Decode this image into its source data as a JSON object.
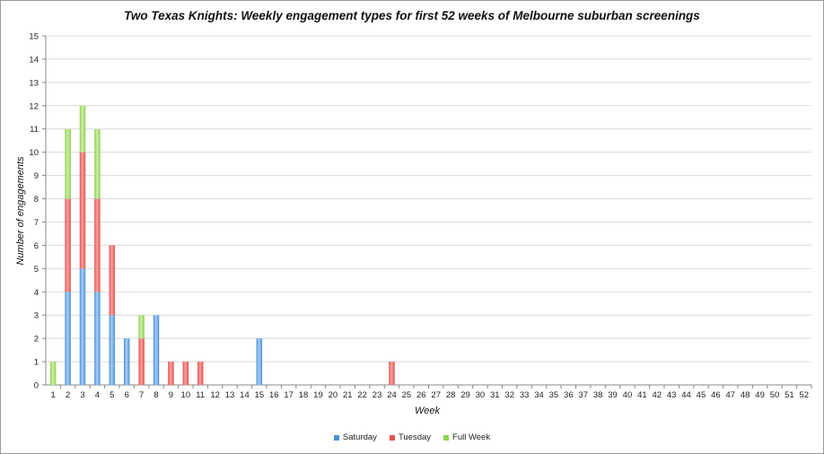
{
  "chart_data": {
    "type": "bar",
    "stacked": true,
    "title": "Two Texas Knights: Weekly engagement types for first 52 weeks of Melbourne suburban screenings",
    "xlabel": "Week",
    "ylabel": "Number of engagements",
    "ylim": [
      0,
      15
    ],
    "yticks": [
      "0",
      "1",
      "2",
      "3",
      "4",
      "5",
      "6",
      "7",
      "8",
      "9",
      "10",
      "11",
      "12",
      "13",
      "14",
      "15"
    ],
    "grid": true,
    "legend_position": "bottom",
    "categories": [
      "1",
      "2",
      "3",
      "4",
      "5",
      "6",
      "7",
      "8",
      "9",
      "10",
      "11",
      "12",
      "13",
      "14",
      "15",
      "16",
      "17",
      "18",
      "19",
      "20",
      "21",
      "22",
      "23",
      "24",
      "25",
      "26",
      "27",
      "28",
      "29",
      "30",
      "31",
      "32",
      "33",
      "34",
      "35",
      "36",
      "37",
      "38",
      "39",
      "40",
      "41",
      "42",
      "43",
      "44",
      "45",
      "46",
      "47",
      "48",
      "49",
      "50",
      "51",
      "52"
    ],
    "series": [
      {
        "name": "Saturday",
        "color": "#4a90d9",
        "values": [
          0,
          4,
          5,
          4,
          3,
          2,
          0,
          3,
          0,
          0,
          0,
          0,
          0,
          0,
          2,
          0,
          0,
          0,
          0,
          0,
          0,
          0,
          0,
          0,
          0,
          0,
          0,
          0,
          0,
          0,
          0,
          0,
          0,
          0,
          0,
          0,
          0,
          0,
          0,
          0,
          0,
          0,
          0,
          0,
          0,
          0,
          0,
          0,
          0,
          0,
          0,
          0
        ]
      },
      {
        "name": "Tuesday",
        "color": "#e8504f",
        "values": [
          0,
          4,
          5,
          4,
          3,
          0,
          2,
          0,
          1,
          1,
          1,
          0,
          0,
          0,
          0,
          0,
          0,
          0,
          0,
          0,
          0,
          0,
          0,
          1,
          0,
          0,
          0,
          0,
          0,
          0,
          0,
          0,
          0,
          0,
          0,
          0,
          0,
          0,
          0,
          0,
          0,
          0,
          0,
          0,
          0,
          0,
          0,
          0,
          0,
          0,
          0,
          0
        ]
      },
      {
        "name": "Full Week",
        "color": "#8fd14f",
        "values": [
          1,
          3,
          2,
          3,
          0,
          0,
          1,
          0,
          0,
          0,
          0,
          0,
          0,
          0,
          0,
          0,
          0,
          0,
          0,
          0,
          0,
          0,
          0,
          0,
          0,
          0,
          0,
          0,
          0,
          0,
          0,
          0,
          0,
          0,
          0,
          0,
          0,
          0,
          0,
          0,
          0,
          0,
          0,
          0,
          0,
          0,
          0,
          0,
          0,
          0,
          0,
          0
        ]
      }
    ]
  }
}
